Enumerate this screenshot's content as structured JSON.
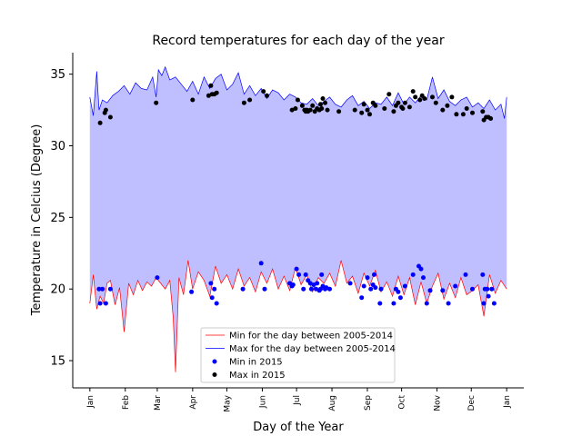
{
  "chart_data": {
    "type": "line",
    "title": "Record temperatures for each day of the year",
    "xlabel": "Day of the Year",
    "ylabel": "Temperature in Celcius (Degree)",
    "xlim": [
      -15,
      380
    ],
    "ylim": [
      13.1,
      36.5
    ],
    "x_ticks": [
      {
        "day": 0,
        "label": "Jan"
      },
      {
        "day": 31,
        "label": "Feb"
      },
      {
        "day": 59,
        "label": "Mar"
      },
      {
        "day": 90,
        "label": "Apr"
      },
      {
        "day": 120,
        "label": "May"
      },
      {
        "day": 151,
        "label": "Jun"
      },
      {
        "day": 181,
        "label": "Jul"
      },
      {
        "day": 212,
        "label": "Aug"
      },
      {
        "day": 243,
        "label": "Sep"
      },
      {
        "day": 273,
        "label": "Oct"
      },
      {
        "day": 304,
        "label": "Nov"
      },
      {
        "day": 334,
        "label": "Dec"
      },
      {
        "day": 365,
        "label": "Jan"
      }
    ],
    "y_ticks": [
      15,
      20,
      25,
      30,
      35
    ],
    "fill_color": "#bfbfff",
    "min_line_color": "#ff0000",
    "max_line_color": "#0000ff",
    "legend": {
      "position": "lower-center",
      "entries": [
        {
          "label": "Min for the day between 2005-2014",
          "kind": "line",
          "color": "#ff0000"
        },
        {
          "label": "Max for the day between 2005-2014",
          "kind": "line",
          "color": "#0000ff"
        },
        {
          "label": "Min in 2015",
          "kind": "dot",
          "color": "#0000ff"
        },
        {
          "label": "Max in 2015",
          "kind": "dot",
          "color": "#000000"
        }
      ]
    },
    "series": [
      {
        "name": "Max for the day between 2005-2014",
        "x": [
          0,
          3,
          6,
          8,
          11,
          15,
          20,
          25,
          30,
          35,
          40,
          45,
          50,
          55,
          58,
          60,
          63,
          66,
          70,
          75,
          80,
          85,
          90,
          95,
          100,
          105,
          110,
          115,
          120,
          125,
          130,
          135,
          140,
          145,
          150,
          155,
          160,
          165,
          170,
          175,
          180,
          185,
          190,
          195,
          200,
          205,
          210,
          215,
          220,
          225,
          230,
          235,
          240,
          245,
          250,
          255,
          260,
          265,
          270,
          275,
          280,
          285,
          290,
          295,
          300,
          305,
          310,
          315,
          320,
          325,
          330,
          335,
          340,
          345,
          350,
          355,
          360,
          363,
          365
        ],
        "y": [
          33.4,
          32.1,
          35.2,
          32.5,
          33.2,
          33.0,
          33.5,
          33.8,
          34.2,
          33.6,
          34.4,
          34.0,
          33.9,
          34.8,
          33.4,
          35.3,
          34.9,
          35.5,
          34.6,
          34.8,
          34.3,
          33.8,
          34.5,
          33.6,
          34.8,
          34.0,
          34.7,
          35.0,
          33.9,
          34.3,
          35.1,
          33.6,
          34.2,
          33.5,
          34.0,
          33.3,
          33.9,
          33.7,
          33.2,
          33.6,
          33.4,
          33.0,
          32.9,
          33.3,
          32.8,
          33.1,
          33.4,
          32.9,
          32.7,
          33.2,
          33.5,
          32.8,
          33.1,
          32.6,
          33.0,
          32.9,
          33.4,
          32.8,
          33.7,
          32.9,
          33.4,
          33.0,
          33.5,
          33.2,
          34.8,
          33.3,
          33.9,
          33.1,
          32.8,
          33.2,
          33.4,
          32.7,
          33.0,
          32.6,
          33.2,
          32.5,
          32.9,
          31.9,
          33.4
        ]
      },
      {
        "name": "Min for the day between 2005-2014",
        "x": [
          0,
          3,
          6,
          9,
          12,
          15,
          18,
          22,
          26,
          30,
          34,
          38,
          42,
          46,
          50,
          54,
          58,
          62,
          66,
          70,
          73,
          75,
          78,
          82,
          86,
          90,
          95,
          100,
          105,
          110,
          115,
          120,
          125,
          130,
          135,
          140,
          145,
          150,
          155,
          160,
          165,
          170,
          175,
          180,
          185,
          190,
          195,
          200,
          205,
          210,
          215,
          220,
          225,
          230,
          235,
          240,
          245,
          250,
          255,
          260,
          265,
          270,
          275,
          280,
          285,
          290,
          295,
          300,
          305,
          310,
          315,
          320,
          325,
          330,
          335,
          340,
          345,
          350,
          355,
          360,
          365
        ],
        "y": [
          19.0,
          21.0,
          18.6,
          19.5,
          19.0,
          20.4,
          20.6,
          18.9,
          20.1,
          17.0,
          20.4,
          19.6,
          20.6,
          19.9,
          20.5,
          20.2,
          20.8,
          20.4,
          20.0,
          20.6,
          18.0,
          14.2,
          20.8,
          19.6,
          22.0,
          20.0,
          21.2,
          20.6,
          19.5,
          21.6,
          20.4,
          21.0,
          20.0,
          21.4,
          20.2,
          20.8,
          19.8,
          21.2,
          20.4,
          21.4,
          20.0,
          20.9,
          19.9,
          21.5,
          20.3,
          21.0,
          19.8,
          20.8,
          20.4,
          21.1,
          20.2,
          22.0,
          20.4,
          20.9,
          19.7,
          21.1,
          20.2,
          21.3,
          19.8,
          20.5,
          19.5,
          20.9,
          19.6,
          20.8,
          18.9,
          20.5,
          19.0,
          20.2,
          21.1,
          19.3,
          20.4,
          19.4,
          20.8,
          19.6,
          19.9,
          20.3,
          18.1,
          21.0,
          19.7,
          20.6,
          20.0
        ]
      },
      {
        "name": "Min in 2015",
        "x": [
          8,
          9,
          11,
          14,
          18,
          59,
          89,
          106,
          107,
          109,
          111,
          134,
          150,
          153,
          175,
          177,
          178,
          181,
          183,
          187,
          189,
          191,
          193,
          194,
          196,
          198,
          199,
          201,
          202,
          203,
          204,
          206,
          207,
          210,
          228,
          238,
          240,
          243,
          246,
          248,
          249,
          250,
          254,
          255,
          266,
          268,
          270,
          272,
          276,
          283,
          288,
          290,
          292,
          295,
          298,
          309,
          314,
          320,
          329,
          335,
          344,
          345,
          346,
          348,
          349,
          352,
          354
        ],
        "y": [
          20.0,
          19.0,
          20.0,
          19.0,
          20.0,
          20.8,
          19.8,
          20.4,
          19.4,
          20.0,
          19.0,
          20.0,
          21.8,
          20.0,
          20.4,
          20.2,
          20.3,
          21.4,
          21.0,
          20.0,
          21.0,
          20.6,
          20.4,
          20.0,
          20.3,
          20.0,
          20.4,
          19.9,
          20.0,
          21.0,
          20.2,
          20.0,
          20.1,
          20.0,
          20.4,
          19.4,
          20.2,
          20.8,
          20.0,
          20.3,
          21.0,
          20.1,
          19.0,
          20.0,
          19.0,
          20.0,
          19.8,
          19.4,
          20.2,
          21.0,
          21.6,
          21.4,
          20.8,
          19.0,
          19.9,
          19.9,
          19.0,
          20.2,
          21.0,
          20.0,
          21.0,
          19.0,
          20.0,
          20.0,
          19.5,
          20.0,
          19.0
        ]
      },
      {
        "name": "Max in 2015",
        "x": [
          9,
          13,
          14,
          18,
          58,
          90,
          104,
          106,
          107,
          109,
          111,
          135,
          140,
          152,
          155,
          177,
          180,
          182,
          186,
          188,
          189,
          190,
          191,
          193,
          195,
          197,
          199,
          201,
          202,
          203,
          204,
          206,
          208,
          218,
          232,
          238,
          240,
          243,
          245,
          248,
          250,
          258,
          262,
          266,
          268,
          270,
          273,
          274,
          276,
          280,
          283,
          285,
          289,
          291,
          293,
          300,
          303,
          309,
          313,
          317,
          321,
          327,
          330,
          335,
          344,
          345,
          347,
          349,
          351
        ],
        "y": [
          31.6,
          32.3,
          32.5,
          32.0,
          33.0,
          33.2,
          33.5,
          34.2,
          33.6,
          33.6,
          33.7,
          33.0,
          33.2,
          33.8,
          33.5,
          32.5,
          32.6,
          33.2,
          32.8,
          32.5,
          32.4,
          32.5,
          32.4,
          32.5,
          32.8,
          32.4,
          32.6,
          32.5,
          32.9,
          32.6,
          33.3,
          33.0,
          32.5,
          32.4,
          32.5,
          32.3,
          32.9,
          32.5,
          32.2,
          33.0,
          32.8,
          32.6,
          33.6,
          32.4,
          32.8,
          33.0,
          32.7,
          32.6,
          33.0,
          32.7,
          33.8,
          33.4,
          33.2,
          33.5,
          33.3,
          33.4,
          33.0,
          32.5,
          32.8,
          33.4,
          32.2,
          32.2,
          32.6,
          32.3,
          32.4,
          31.8,
          32.0,
          32.0,
          31.9
        ]
      }
    ]
  }
}
